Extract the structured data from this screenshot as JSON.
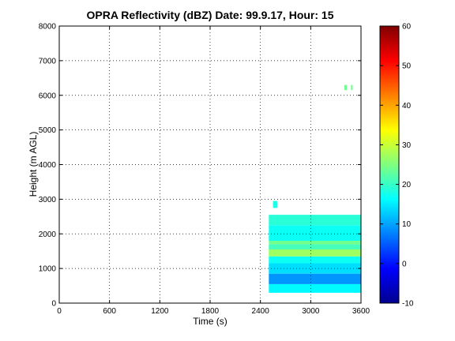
{
  "chart_data": {
    "type": "heatmap",
    "title": "OPRA Reflectivity (dBZ)  Date: 99.9.17, Hour: 15",
    "xlabel": "Time (s)",
    "ylabel": "Height (m AGL)",
    "xlim": [
      0,
      3600
    ],
    "ylim": [
      0,
      8000
    ],
    "xticks": [
      0,
      600,
      1200,
      1800,
      2400,
      3000,
      3600
    ],
    "yticks": [
      0,
      1000,
      2000,
      3000,
      4000,
      5000,
      6000,
      7000,
      8000
    ],
    "grid": true,
    "colormap": "jet",
    "colorbar": {
      "range": [
        -10,
        60
      ],
      "ticks": [
        -10,
        0,
        10,
        20,
        30,
        40,
        50,
        60
      ]
    },
    "echo_regions": [
      {
        "t_start": 2500,
        "t_end": 3600,
        "h_bottom": 300,
        "h_top": 550,
        "dbz": 16
      },
      {
        "t_start": 2500,
        "t_end": 3600,
        "h_bottom": 550,
        "h_top": 850,
        "dbz": 9
      },
      {
        "t_start": 2500,
        "t_end": 3600,
        "h_bottom": 850,
        "h_top": 1150,
        "dbz": 14
      },
      {
        "t_start": 2500,
        "t_end": 3600,
        "h_bottom": 1150,
        "h_top": 1350,
        "dbz": 17
      },
      {
        "t_start": 2500,
        "t_end": 3600,
        "h_bottom": 1350,
        "h_top": 1550,
        "dbz": 27
      },
      {
        "t_start": 2500,
        "t_end": 3600,
        "h_bottom": 1550,
        "h_top": 1700,
        "dbz": 21
      },
      {
        "t_start": 2500,
        "t_end": 3600,
        "h_bottom": 1700,
        "h_top": 1800,
        "dbz": 24
      },
      {
        "t_start": 2500,
        "t_end": 3600,
        "h_bottom": 1800,
        "h_top": 2250,
        "dbz": 17
      },
      {
        "t_start": 2500,
        "t_end": 3600,
        "h_bottom": 2250,
        "h_top": 2550,
        "dbz": 19
      },
      {
        "t_start": 2550,
        "t_end": 2600,
        "h_bottom": 2750,
        "h_top": 2950,
        "dbz": 18
      },
      {
        "t_start": 3400,
        "t_end": 3430,
        "h_bottom": 6150,
        "h_top": 6300,
        "dbz": 24
      },
      {
        "t_start": 3480,
        "t_end": 3500,
        "h_bottom": 6150,
        "h_top": 6300,
        "dbz": 24
      }
    ]
  }
}
